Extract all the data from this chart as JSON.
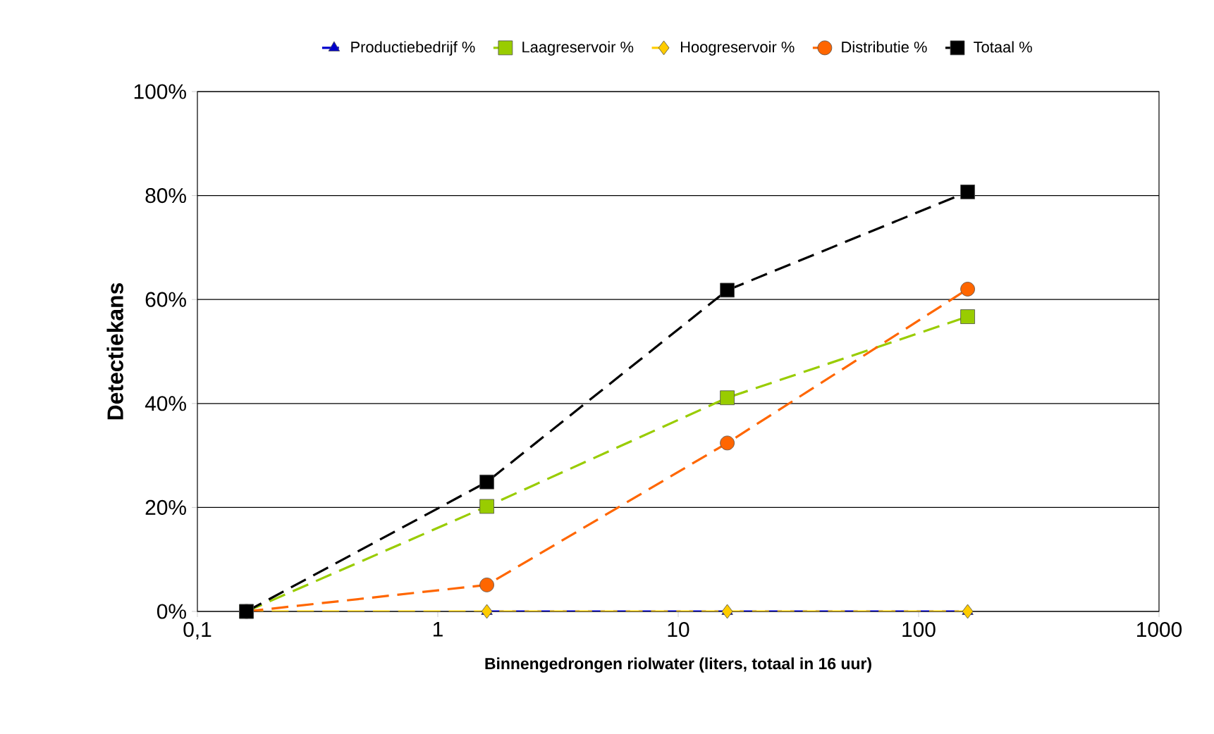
{
  "chart_data": {
    "type": "line",
    "xlabel": "Binnengedrongen riolwater (liters, totaal in 16 uur)",
    "ylabel": "Detectiekans",
    "log": "x",
    "xlim": [
      0.1,
      1000
    ],
    "xticks": [
      {
        "value": 0.1,
        "label": "0,1"
      },
      1,
      10,
      100,
      1000
    ],
    "ylim": [
      0,
      100
    ],
    "yticks": [
      {
        "value": 0,
        "label": "0%"
      },
      {
        "value": 20,
        "label": "20%"
      },
      {
        "value": 40,
        "label": "40%"
      },
      {
        "value": 60,
        "label": "60%"
      },
      {
        "value": 80,
        "label": "80%"
      },
      {
        "value": 100,
        "label": "100%"
      }
    ],
    "grid": "y",
    "legend": "top",
    "line_style": "dashed",
    "x": [
      0.16,
      1.6,
      16,
      160
    ],
    "series": [
      {
        "name": "Productiebedrijf %",
        "color": "#0000cc",
        "marker": "triangle",
        "values": [
          null,
          0,
          0,
          0
        ]
      },
      {
        "name": "Laagreservoir %",
        "color": "#99cc00",
        "marker": "square",
        "values": [
          0,
          20.2,
          41.1,
          56.7
        ]
      },
      {
        "name": "Hoogreservoir %",
        "color": "#ffcc00",
        "marker": "diamond",
        "values": [
          0,
          0,
          0,
          0
        ]
      },
      {
        "name": "Distributie %",
        "color": "#ff6600",
        "marker": "circle",
        "values": [
          0,
          5.1,
          32.4,
          62
        ]
      },
      {
        "name": "Totaal %",
        "color": "#000000",
        "marker": "square",
        "values": [
          0,
          24.9,
          61.8,
          80.7
        ]
      }
    ]
  }
}
